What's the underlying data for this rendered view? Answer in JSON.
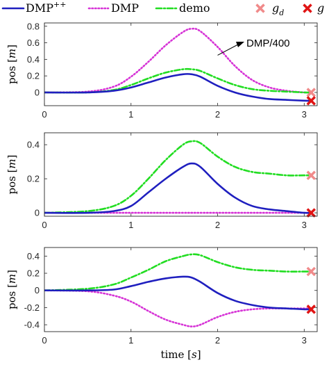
{
  "chart_data": {
    "type": "line",
    "legend": {
      "placement": "top",
      "entries": [
        {
          "label": "DMP",
          "superscript": "++",
          "color": "#1f1fbf",
          "style": "solid"
        },
        {
          "label": "DMP",
          "color": "#d633d6",
          "style": "dotted"
        },
        {
          "label": "demo",
          "color": "#22dd22",
          "style": "dashdot"
        },
        {
          "label": "g",
          "subscript": "d",
          "color": "#f08a8a",
          "marker": "x"
        },
        {
          "label": "g",
          "color": "#e01414",
          "marker": "x"
        }
      ]
    },
    "panels": [
      {
        "xlim": [
          0,
          3.15
        ],
        "ylim": [
          -0.16,
          0.84
        ],
        "xticks": [
          "0",
          "1",
          "2",
          "3"
        ],
        "yticks": [
          "0",
          "0.2",
          "0.4",
          "0.6",
          "0.8"
        ],
        "xlabel": "",
        "ylabel_parts": {
          "text": "pos ",
          "unit": "m"
        },
        "annotation": "DMP/400",
        "x": [
          0,
          0.5,
          0.8,
          1.0,
          1.2,
          1.4,
          1.6,
          1.7,
          1.8,
          2.0,
          2.2,
          2.4,
          2.6,
          2.8,
          3.0,
          3.08
        ],
        "series": [
          {
            "key": "dmppp",
            "values": [
              0,
              0,
              0.02,
              0.06,
              0.12,
              0.18,
              0.22,
              0.22,
              0.19,
              0.08,
              0.0,
              -0.05,
              -0.08,
              -0.09,
              -0.1,
              -0.1
            ]
          },
          {
            "key": "dmp",
            "values": [
              0,
              0.01,
              0.07,
              0.19,
              0.37,
              0.57,
              0.73,
              0.77,
              0.74,
              0.55,
              0.32,
              0.15,
              0.06,
              0.02,
              0.0,
              0.0
            ]
          },
          {
            "key": "demo",
            "values": [
              0,
              0,
              0.03,
              0.09,
              0.17,
              0.24,
              0.28,
              0.28,
              0.26,
              0.17,
              0.09,
              0.04,
              0.02,
              0.01,
              0.0,
              0.0
            ]
          }
        ],
        "markers": [
          {
            "key": "gd",
            "x": 3.08,
            "y": 0.0
          },
          {
            "key": "g",
            "x": 3.08,
            "y": -0.1
          }
        ]
      },
      {
        "xlim": [
          0,
          3.15
        ],
        "ylim": [
          -0.02,
          0.47
        ],
        "xticks": [
          "0",
          "1",
          "2",
          "3"
        ],
        "yticks": [
          "0",
          "0.2",
          "0.4"
        ],
        "xlabel": "",
        "ylabel_parts": {
          "text": "pos ",
          "unit": "m"
        },
        "x": [
          0,
          0.5,
          0.8,
          1.0,
          1.2,
          1.4,
          1.6,
          1.7,
          1.8,
          2.0,
          2.2,
          2.4,
          2.6,
          2.8,
          3.0,
          3.08
        ],
        "series": [
          {
            "key": "dmppp",
            "values": [
              0,
              0,
              0.01,
              0.04,
              0.12,
              0.2,
              0.27,
              0.29,
              0.27,
              0.17,
              0.09,
              0.04,
              0.02,
              0.01,
              0.0,
              0.0
            ]
          },
          {
            "key": "dmp",
            "values": [
              0,
              0,
              0,
              0,
              0,
              0,
              0,
              0,
              0,
              0,
              0,
              0,
              0,
              0,
              0,
              0
            ]
          },
          {
            "key": "demo",
            "values": [
              0,
              0.01,
              0.04,
              0.1,
              0.2,
              0.31,
              0.4,
              0.42,
              0.41,
              0.33,
              0.27,
              0.24,
              0.23,
              0.22,
              0.22,
              0.22
            ]
          }
        ],
        "markers": [
          {
            "key": "gd",
            "x": 3.08,
            "y": 0.22
          },
          {
            "key": "g",
            "x": 3.08,
            "y": 0.0
          }
        ]
      },
      {
        "xlim": [
          0,
          3.15
        ],
        "ylim": [
          -0.48,
          0.5
        ],
        "xticks": [
          "0",
          "1",
          "2",
          "3"
        ],
        "yticks": [
          "-0.4",
          "-0.2",
          "0",
          "0.2",
          "0.4"
        ],
        "xlabel_parts": {
          "text": "time ",
          "unit": "s"
        },
        "ylabel_parts": {
          "text": "pos ",
          "unit": "m"
        },
        "x": [
          0,
          0.5,
          0.8,
          1.0,
          1.2,
          1.4,
          1.6,
          1.7,
          1.8,
          2.0,
          2.2,
          2.4,
          2.6,
          2.8,
          3.0,
          3.08
        ],
        "series": [
          {
            "key": "dmppp",
            "values": [
              0,
              0,
              0.01,
              0.05,
              0.1,
              0.14,
              0.16,
              0.15,
              0.1,
              -0.03,
              -0.12,
              -0.17,
              -0.2,
              -0.21,
              -0.22,
              -0.22
            ]
          },
          {
            "key": "dmp",
            "values": [
              0,
              -0.01,
              -0.06,
              -0.13,
              -0.24,
              -0.34,
              -0.4,
              -0.42,
              -0.4,
              -0.31,
              -0.25,
              -0.22,
              -0.21,
              -0.21,
              -0.21,
              -0.21
            ]
          },
          {
            "key": "demo",
            "values": [
              0,
              0.02,
              0.07,
              0.15,
              0.24,
              0.34,
              0.4,
              0.42,
              0.41,
              0.33,
              0.27,
              0.24,
              0.23,
              0.22,
              0.22,
              0.22
            ]
          }
        ],
        "markers": [
          {
            "key": "gd",
            "x": 3.08,
            "y": 0.22
          },
          {
            "key": "g",
            "x": 3.08,
            "y": -0.22
          }
        ]
      }
    ]
  }
}
